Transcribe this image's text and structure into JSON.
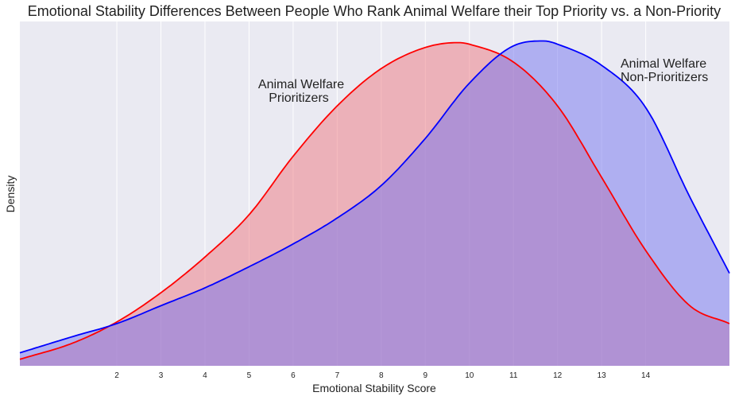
{
  "chart_data": {
    "type": "area",
    "title": "Emotional Stability Differences Between People Who Rank Animal Welfare their Top Priority vs. a Non-Priority",
    "xlabel": "Emotional Stability Score",
    "ylabel": "Density",
    "xlim": [
      -0.2,
      15.9
    ],
    "ylim": [
      0,
      1.06
    ],
    "x_ticks": [
      2,
      3,
      4,
      5,
      6,
      7,
      8,
      9,
      10,
      11,
      12,
      13,
      14
    ],
    "grid": true,
    "series": [
      {
        "name": "Animal Welfare Prioritizers",
        "line_color": "#ff0000",
        "fill_color": "rgba(238,120,128,0.5)",
        "x": [
          -0.2,
          1,
          2,
          3,
          4,
          5,
          6,
          7,
          8,
          9,
          9.75,
          10,
          11,
          12,
          13,
          14,
          15,
          15.9
        ],
        "y": [
          0.02,
          0.07,
          0.135,
          0.225,
          0.335,
          0.465,
          0.645,
          0.8,
          0.915,
          0.98,
          0.995,
          0.99,
          0.935,
          0.8,
          0.58,
          0.355,
          0.185,
          0.13
        ]
      },
      {
        "name": "Animal Welfare Non-Prioritizers",
        "line_color": "#0000ff",
        "fill_color": "rgba(115,115,240,0.5)",
        "x": [
          -0.2,
          1,
          2,
          3,
          4,
          5,
          6,
          7,
          8,
          9,
          10,
          11,
          11.7,
          12,
          13,
          14,
          15,
          15.9
        ],
        "y": [
          0.04,
          0.09,
          0.13,
          0.185,
          0.24,
          0.305,
          0.375,
          0.455,
          0.555,
          0.7,
          0.87,
          0.985,
          1.0,
          0.99,
          0.925,
          0.795,
          0.52,
          0.285
        ]
      }
    ],
    "annotations": [
      {
        "series": 0,
        "lines": [
          "Animal Welfare",
          "Prioritizers"
        ]
      },
      {
        "series": 1,
        "lines": [
          "Animal Welfare",
          "Non-Prioritizers"
        ]
      }
    ]
  }
}
